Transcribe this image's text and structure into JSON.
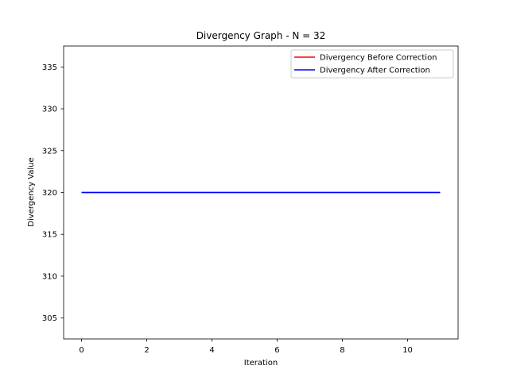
{
  "chart_data": {
    "type": "line",
    "title": "Divergency Graph - N =  32",
    "xlabel": "Iteration",
    "ylabel": "Divergency Value",
    "xlim": [
      -0.55,
      11.55
    ],
    "ylim": [
      302.5,
      337.5
    ],
    "x": [
      0,
      1,
      2,
      3,
      4,
      5,
      6,
      7,
      8,
      9,
      10,
      11
    ],
    "xticks": [
      0,
      2,
      4,
      6,
      8,
      10
    ],
    "xtick_labels": [
      "0",
      "2",
      "4",
      "6",
      "8",
      "10"
    ],
    "yticks": [
      305,
      310,
      315,
      320,
      325,
      330,
      335
    ],
    "ytick_labels": [
      "305",
      "310",
      "315",
      "320",
      "325",
      "330",
      "335"
    ],
    "grid": false,
    "legend_position": "top-right",
    "series": [
      {
        "name": "Divergency Before Correction",
        "color": "#ff0000",
        "values": [
          320,
          320,
          320,
          320,
          320,
          320,
          320,
          320,
          320,
          320,
          320,
          320
        ]
      },
      {
        "name": "Divergency After Correction",
        "color": "#0000ff",
        "values": [
          320,
          320,
          320,
          320,
          320,
          320,
          320,
          320,
          320,
          320,
          320,
          320
        ]
      }
    ]
  }
}
